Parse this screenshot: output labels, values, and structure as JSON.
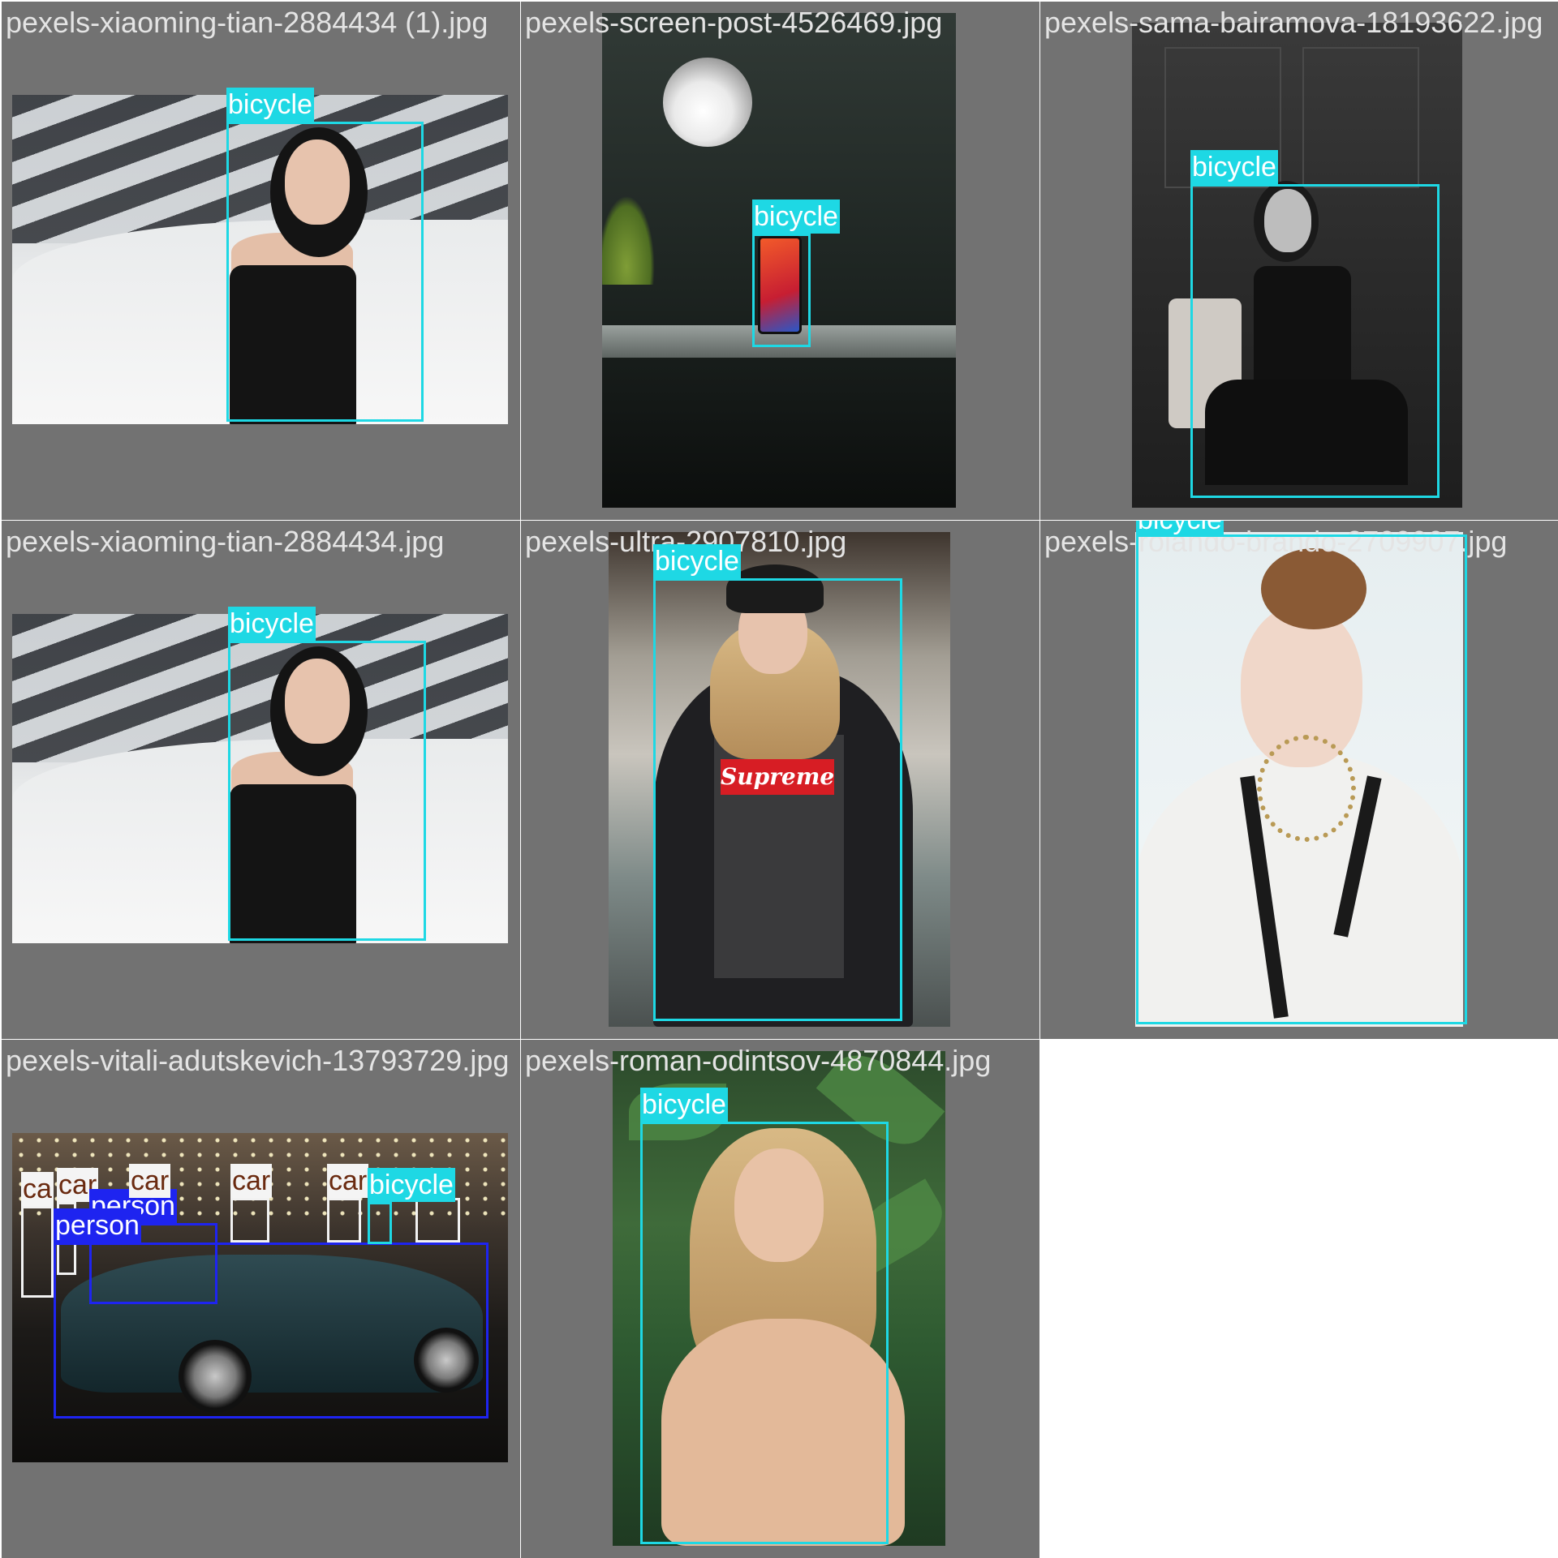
{
  "cells": [
    {
      "filename": "pexels-xiaoming-tian-2884434 (1).jpg",
      "detections": [
        {
          "label": "bicycle",
          "color": "#1ed8e4"
        }
      ]
    },
    {
      "filename": "pexels-screen-post-4526469.jpg",
      "detections": [
        {
          "label": "bicycle",
          "color": "#1ed8e4"
        }
      ]
    },
    {
      "filename": "pexels-sama-bairamova-18193622.jpg",
      "detections": [
        {
          "label": "bicycle",
          "color": "#1ed8e4"
        }
      ]
    },
    {
      "filename": "pexels-xiaoming-tian-2884434.jpg",
      "detections": [
        {
          "label": "bicycle",
          "color": "#1ed8e4"
        }
      ]
    },
    {
      "filename": "pexels-ultra-2907810.jpg",
      "detections": [
        {
          "label": "bicycle",
          "color": "#1ed8e4"
        }
      ]
    },
    {
      "filename": "pexels-rolando-brando-2709907.jpg",
      "detections": [
        {
          "label": "bicycle",
          "color": "#1ed8e4"
        }
      ]
    },
    {
      "filename": "pexels-vitali-adutskevich-13793729.jpg",
      "detections": [
        {
          "label": "ca",
          "color": "#f2f2f2"
        },
        {
          "label": "car",
          "color": "#f2f2f2"
        },
        {
          "label": "car",
          "color": "#f2f2f2"
        },
        {
          "label": "car",
          "color": "#f2f2f2"
        },
        {
          "label": "car",
          "color": "#f2f2f2"
        },
        {
          "label": "person",
          "color": "#1e24f0"
        },
        {
          "label": "person",
          "color": "#1e24f0"
        },
        {
          "label": "bicycle",
          "color": "#1ed8e4"
        }
      ]
    },
    {
      "filename": "pexels-roman-odintsov-4870844.jpg",
      "detections": [
        {
          "label": "bicycle",
          "color": "#1ed8e4"
        }
      ]
    }
  ],
  "photo_text": {
    "supreme": "Supreme"
  }
}
